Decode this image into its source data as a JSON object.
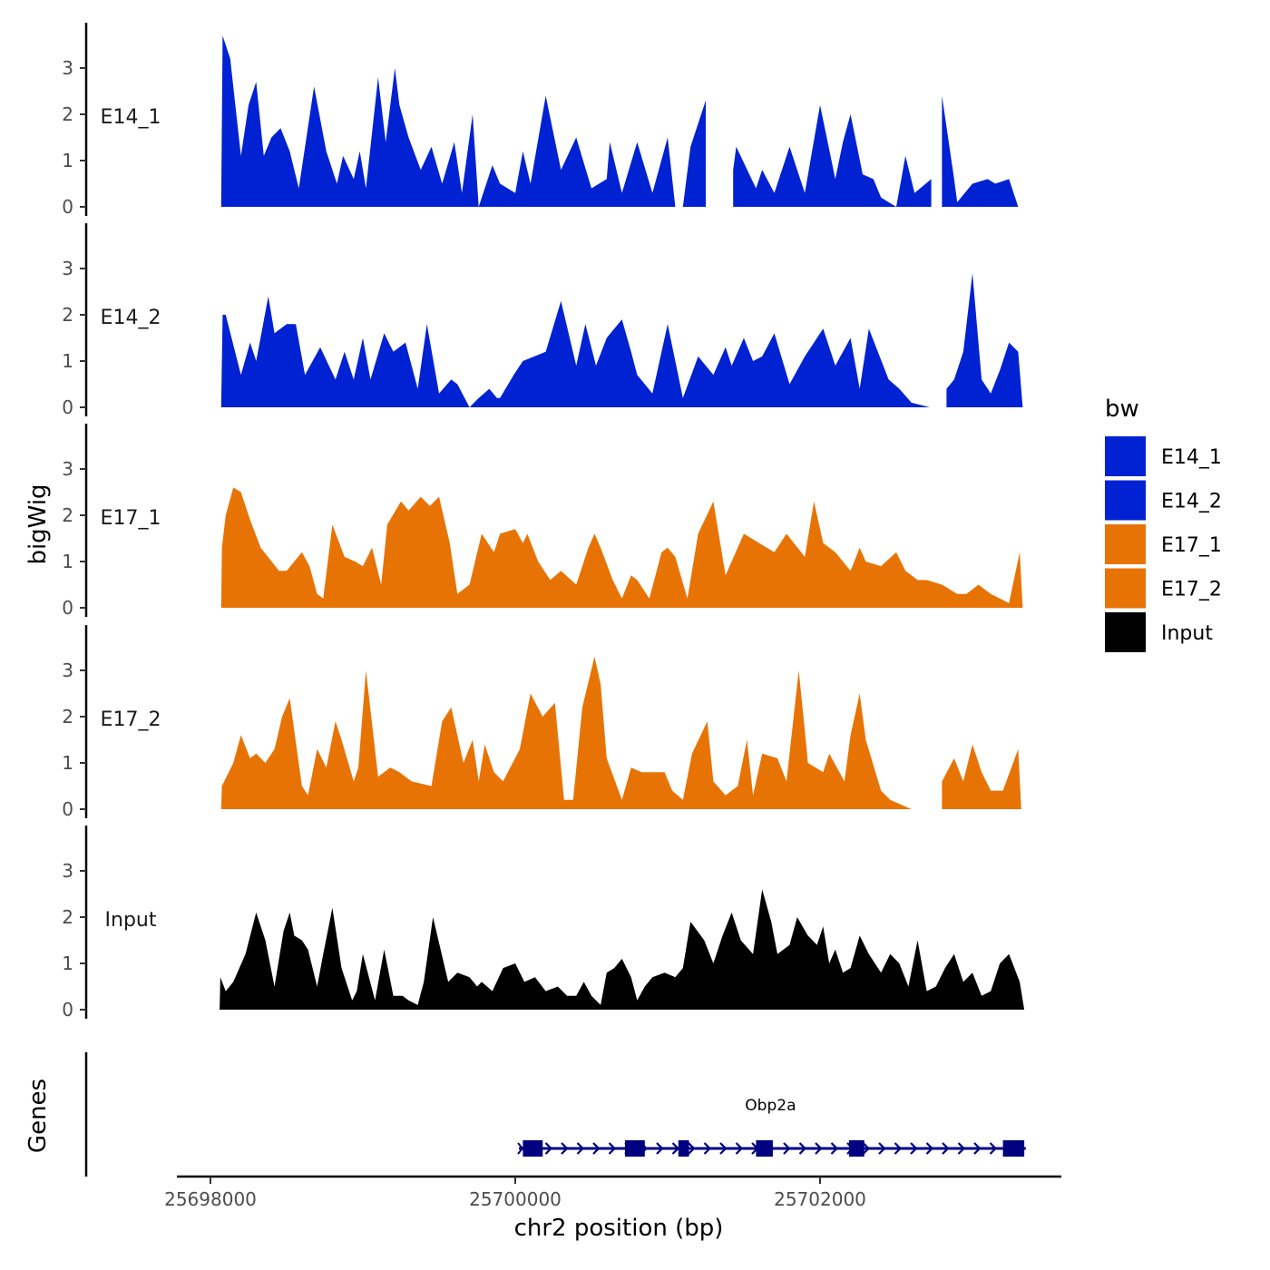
{
  "chart_data": {
    "type": "area",
    "title": "",
    "ylabel": "bigWig",
    "xlabel": "chr2 position (bp)",
    "genes_label": "Genes",
    "xlim": [
      25697800,
      25703600
    ],
    "ylim": [
      0,
      3.9
    ],
    "x_ticks": [
      25698000,
      25700000,
      25702000
    ],
    "x_tick_labels": [
      "25698000",
      "25700000",
      "25702000"
    ],
    "y_ticks": [
      0,
      1,
      2,
      3
    ],
    "y_tick_labels": [
      "0",
      "1",
      "2",
      "3"
    ],
    "legend": {
      "title": "bw",
      "position": "right",
      "items": [
        {
          "label": "E14_1",
          "color": "#0022d2"
        },
        {
          "label": "E14_2",
          "color": "#0022d2"
        },
        {
          "label": "E17_1",
          "color": "#e87305"
        },
        {
          "label": "E17_2",
          "color": "#e87305"
        },
        {
          "label": "Input",
          "color": "#000000"
        }
      ]
    },
    "series": [
      {
        "name": "E14_1",
        "color": "#0022d2",
        "x": [
          25698070,
          25698080,
          25698130,
          25698200,
          25698250,
          25698300,
          25698350,
          25698400,
          25698460,
          25698520,
          25698580,
          25698630,
          25698680,
          25698760,
          25698830,
          25698870,
          25698940,
          25698980,
          25699020,
          25699100,
          25699150,
          25699210,
          25699240,
          25699300,
          25699380,
          25699450,
          25699520,
          25699600,
          25699650,
          25699720,
          25699760,
          25699850,
          25699900,
          25700000,
          25700050,
          25700100,
          25700200,
          25700300,
          25700400,
          25700500,
          25700600,
          25700620,
          25700700,
          25700800,
          25700900,
          25701000,
          25701050,
          25701100,
          25701150,
          25701250,
          25701300,
          25701430,
          25701450,
          25701580,
          25701620,
          25701700,
          25701800,
          25701900,
          25702000,
          25702100,
          25702150,
          25702200,
          25702280,
          25702350,
          25702400,
          25702500,
          25702560,
          25702620,
          25702730,
          25702750,
          25702800,
          25702880,
          25702900,
          25703000,
          25703100,
          25703150,
          25703240,
          25703300
        ],
        "y": [
          0,
          3.7,
          3.2,
          1.1,
          2.2,
          2.7,
          1.1,
          1.5,
          1.7,
          1.2,
          0.4,
          1.5,
          2.6,
          1.2,
          0.5,
          1.1,
          0.6,
          1.2,
          0.4,
          2.8,
          1.4,
          3.0,
          2.2,
          1.5,
          0.8,
          1.3,
          0.5,
          1.4,
          0.3,
          2.0,
          0,
          0.9,
          0.5,
          0.3,
          1.2,
          0.5,
          2.4,
          0.8,
          1.5,
          0.4,
          0.6,
          1.4,
          0.3,
          1.4,
          0.3,
          1.5,
          0,
          0,
          1.3,
          2.3,
          1.4,
          0.8,
          1.3,
          0.4,
          0.8,
          0.3,
          1.3,
          0.3,
          2.2,
          0.6,
          1.4,
          2.0,
          0.7,
          0.6,
          0.2,
          0,
          1.1,
          0.3,
          0.6,
          0.4,
          2.4,
          0.6,
          0.1,
          0.5,
          0.6,
          0.5,
          0.6,
          0
        ],
        "gaps": [
          [
            25701260,
            25701420
          ],
          [
            25702740,
            25702800
          ]
        ]
      },
      {
        "name": "E14_2",
        "color": "#0022d2",
        "x": [
          25698070,
          25698080,
          25698100,
          25698200,
          25698260,
          25698300,
          25698380,
          25698420,
          25698500,
          25698560,
          25698620,
          25698720,
          25698820,
          25698880,
          25698940,
          25699000,
          25699050,
          25699140,
          25699200,
          25699280,
          25699360,
          25699420,
          25699500,
          25699580,
          25699620,
          25699700,
          25699760,
          25699830,
          25699880,
          25699900,
          25699990,
          25700050,
          25700200,
          25700300,
          25700400,
          25700460,
          25700530,
          25700600,
          25700700,
          25700760,
          25700800,
          25700900,
          25701000,
          25701100,
          25701200,
          25701300,
          25701380,
          25701420,
          25701500,
          25701560,
          25701620,
          25701700,
          25701800,
          25701900,
          25702020,
          25702100,
          25702200,
          25702260,
          25702320,
          25702450,
          25702520,
          25702600,
          25702720,
          25702780,
          25702830,
          25702880,
          25702940,
          25703000,
          25703060,
          25703120,
          25703180,
          25703240,
          25703300,
          25703330
        ],
        "y": [
          0,
          2.0,
          2.0,
          0.7,
          1.4,
          1.0,
          2.4,
          1.6,
          1.8,
          1.8,
          0.7,
          1.3,
          0.6,
          1.2,
          0.6,
          1.5,
          0.6,
          1.6,
          1.2,
          1.4,
          0.4,
          1.8,
          0.3,
          0.6,
          0.5,
          0,
          0.2,
          0.4,
          0.2,
          0.2,
          0.7,
          1.0,
          1.2,
          2.3,
          0.9,
          1.8,
          0.9,
          1.5,
          1.9,
          1.2,
          0.7,
          0.3,
          1.8,
          0.2,
          1.1,
          0.7,
          1.3,
          0.9,
          1.5,
          1.0,
          1.1,
          1.6,
          0.5,
          1.1,
          1.7,
          0.9,
          1.5,
          0.4,
          1.7,
          0.6,
          0.4,
          0.1,
          0,
          0.1,
          0.4,
          0.6,
          1.2,
          2.9,
          0.6,
          0.3,
          0.8,
          1.4,
          1.2,
          0
        ],
        "gaps": [
          [
            25699730,
            25699760
          ],
          [
            25702720,
            25702810
          ]
        ]
      },
      {
        "name": "E17_1",
        "color": "#e87305",
        "x": [
          25698070,
          25698075,
          25698100,
          25698150,
          25698200,
          25698260,
          25698330,
          25698450,
          25698500,
          25698600,
          25698650,
          25698700,
          25698740,
          25698800,
          25698880,
          25698950,
          25699000,
          25699060,
          25699120,
          25699160,
          25699250,
          25699300,
          25699380,
          25699440,
          25699500,
          25699570,
          25699620,
          25699700,
          25699780,
          25699860,
          25699900,
          25700000,
          25700050,
          25700080,
          25700150,
          25700230,
          25700300,
          25700400,
          25700480,
          25700520,
          25700560,
          25700640,
          25700700,
          25700760,
          25700800,
          25700880,
          25700960,
          25701000,
          25701050,
          25701130,
          25701200,
          25701300,
          25701380,
          25701500,
          25701600,
          25701700,
          25701780,
          25701900,
          25701960,
          25702020,
          25702100,
          25702200,
          25702260,
          25702300,
          25702400,
          25702500,
          25702560,
          25702640,
          25702700,
          25702800,
          25702900,
          25702960,
          25703040,
          25703120,
          25703180,
          25703240,
          25703310,
          25703330
        ],
        "y": [
          0,
          1.3,
          2.0,
          2.6,
          2.5,
          1.9,
          1.3,
          0.8,
          0.8,
          1.2,
          0.9,
          0.3,
          0.2,
          1.8,
          1.1,
          1.0,
          0.9,
          1.3,
          0.5,
          1.8,
          2.3,
          2.1,
          2.4,
          2.2,
          2.4,
          1.4,
          0.3,
          0.5,
          1.6,
          1.2,
          1.6,
          1.7,
          1.4,
          1.6,
          1.0,
          0.6,
          0.8,
          0.5,
          1.3,
          1.6,
          1.3,
          0.6,
          0.2,
          0.7,
          0.6,
          0.2,
          1.2,
          1.3,
          1.1,
          0.2,
          1.6,
          2.3,
          0.7,
          1.6,
          1.4,
          1.2,
          1.6,
          1.1,
          2.3,
          1.4,
          1.2,
          0.8,
          1.3,
          1.0,
          0.9,
          1.2,
          0.8,
          0.6,
          0.6,
          0.5,
          0.3,
          0.3,
          0.5,
          0.3,
          0.2,
          0.1,
          1.2,
          0
        ]
      },
      {
        "name": "E17_2",
        "color": "#e87305",
        "x": [
          25698070,
          25698075,
          25698150,
          25698200,
          25698260,
          25698300,
          25698360,
          25698420,
          25698470,
          25698520,
          25698600,
          25698640,
          25698700,
          25698760,
          25698820,
          25698860,
          25698940,
          25698970,
          25699020,
          25699100,
          25699180,
          25699240,
          25699320,
          25699450,
          25699520,
          25699580,
          25699660,
          25699720,
          25699760,
          25699800,
          25699860,
          25699920,
          25700030,
          25700100,
          25700180,
          25700260,
          25700320,
          25700380,
          25700440,
          25700520,
          25700560,
          25700600,
          25700700,
          25700760,
          25700830,
          25700900,
          25700980,
          25701030,
          25701100,
          25701160,
          25701260,
          25701300,
          25701380,
          25701460,
          25701520,
          25701560,
          25701620,
          25701720,
          25701780,
          25701860,
          25701900,
          25701920,
          25702020,
          25702060,
          25702160,
          25702200,
          25702260,
          25702300,
          25702400,
          25702460,
          25702600,
          25702700,
          25702740,
          25702800,
          25702880,
          25702940,
          25703000,
          25703060,
          25703120,
          25703200,
          25703300,
          25703320
        ],
        "y": [
          0,
          0.5,
          1.0,
          1.6,
          1.1,
          1.2,
          1.0,
          1.3,
          2.0,
          2.4,
          0.5,
          0.3,
          1.3,
          0.9,
          1.9,
          1.5,
          0.6,
          0.9,
          3.0,
          0.7,
          0.9,
          0.8,
          0.6,
          0.5,
          1.9,
          2.2,
          1.0,
          1.5,
          0.6,
          1.4,
          0.8,
          0.6,
          1.3,
          2.5,
          2.0,
          2.3,
          0.2,
          0.2,
          2.2,
          3.3,
          2.7,
          1.1,
          0.2,
          0.9,
          0.8,
          0.8,
          0.8,
          0.4,
          0.2,
          1.2,
          1.9,
          0.6,
          0.3,
          0.5,
          1.5,
          0.3,
          1.2,
          1.1,
          0.6,
          3.0,
          1.7,
          1.0,
          0.8,
          1.2,
          0.6,
          1.6,
          2.5,
          1.5,
          0.4,
          0.2,
          0,
          0,
          0.2,
          0.6,
          1.1,
          0.6,
          1.4,
          0.8,
          0.4,
          0.4,
          1.3,
          0
        ],
        "gaps": [
          [
            25702620,
            25702790
          ]
        ]
      },
      {
        "name": "Input",
        "color": "#000000",
        "x": [
          25698060,
          25698065,
          25698100,
          25698150,
          25698230,
          25698300,
          25698360,
          25698420,
          25698480,
          25698520,
          25698550,
          25698600,
          25698640,
          25698700,
          25698740,
          25698800,
          25698860,
          25698930,
          25698960,
          25699000,
          25699080,
          25699140,
          25699200,
          25699260,
          25699300,
          25699360,
          25699400,
          25699460,
          25699560,
          25699620,
          25699700,
          25699750,
          25699780,
          25699850,
          25699920,
          25700000,
          25700060,
          25700130,
          25700200,
          25700280,
          25700340,
          25700400,
          25700450,
          25700500,
          25700560,
          25700600,
          25700650,
          25700700,
          25700760,
          25700800,
          25700850,
          25700900,
          25700980,
          25701050,
          25701100,
          25701150,
          25701240,
          25701300,
          25701360,
          25701420,
          25701480,
          25701560,
          25701620,
          25701680,
          25701720,
          25701800,
          25701850,
          25701920,
          25701980,
          25702020,
          25702060,
          25702100,
          25702150,
          25702200,
          25702260,
          25702320,
          25702400,
          25702460,
          25702520,
          25702580,
          25702640,
          25702700,
          25702760,
          25702820,
          25702880,
          25702940,
          25703000,
          25703060,
          25703120,
          25703180,
          25703240,
          25703310,
          25703340
        ],
        "y": [
          0,
          0.7,
          0.4,
          0.6,
          1.2,
          2.1,
          1.5,
          0.5,
          1.7,
          2.1,
          1.6,
          1.5,
          1.3,
          0.5,
          1.2,
          2.2,
          0.9,
          0.2,
          0.4,
          1.2,
          0.2,
          1.3,
          0.3,
          0.3,
          0.2,
          0.1,
          0.6,
          2.0,
          0.6,
          0.8,
          0.7,
          0.5,
          0.6,
          0.4,
          0.9,
          1.0,
          0.6,
          0.7,
          0.4,
          0.5,
          0.3,
          0.3,
          0.6,
          0.3,
          0.1,
          0.8,
          0.9,
          1.1,
          0.7,
          0.2,
          0.5,
          0.7,
          0.8,
          0.7,
          0.9,
          1.9,
          1.5,
          1.0,
          1.6,
          2.1,
          1.5,
          1.2,
          2.6,
          1.9,
          1.2,
          1.4,
          2.0,
          1.6,
          1.4,
          1.8,
          1.0,
          1.3,
          0.8,
          0.9,
          1.6,
          1.2,
          0.8,
          1.2,
          1.0,
          0.5,
          1.5,
          0.4,
          0.5,
          0.9,
          1.2,
          0.6,
          0.8,
          0.3,
          0.4,
          1.0,
          1.2,
          0.6,
          0
        ]
      }
    ],
    "gene_track": {
      "gene_name": "Obp2a",
      "strand": "+",
      "start": 25700000,
      "end": 25703350,
      "exons": [
        {
          "start": 25700050,
          "end": 25700180
        },
        {
          "start": 25700720,
          "end": 25700850
        },
        {
          "start": 25701070,
          "end": 25701140
        },
        {
          "start": 25701580,
          "end": 25701690
        },
        {
          "start": 25702190,
          "end": 25702290
        },
        {
          "start": 25703200,
          "end": 25703340
        }
      ],
      "color": "#000080"
    }
  }
}
